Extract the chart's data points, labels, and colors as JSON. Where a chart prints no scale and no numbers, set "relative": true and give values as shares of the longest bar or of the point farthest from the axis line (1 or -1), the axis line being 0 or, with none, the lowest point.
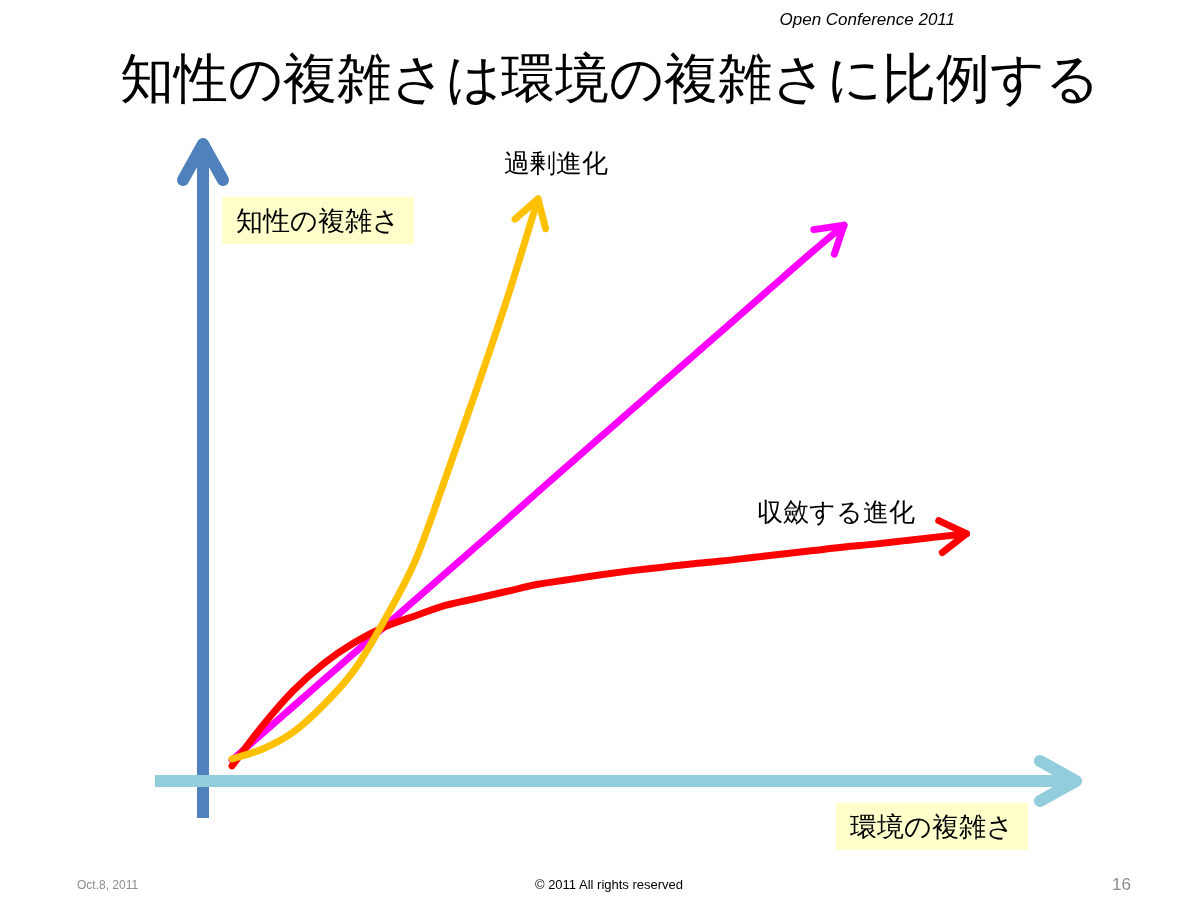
{
  "chart_data": {
    "type": "line",
    "title": "知性の複雑さは環境の複雑さに比例する",
    "xlabel": "環境の複雑さ",
    "ylabel": "知性の複雑さ",
    "relative": true,
    "line_style": "solid",
    "categories": [
      null,
      null,
      null,
      null,
      null,
      null,
      null,
      null,
      null,
      null,
      null,
      null,
      null,
      null,
      null,
      null,
      null,
      null,
      null,
      null,
      null,
      null,
      null,
      null,
      null
    ],
    "series": [
      {
        "color": "#ff00ff",
        "values": [
          0.036,
          0.082,
          0.128,
          0.174,
          0.22,
          0.266,
          0.312,
          0.358,
          0.404,
          0.45,
          0.497,
          0.543,
          0.589,
          0.635,
          0.681,
          0.727,
          0.773,
          0.819,
          0.865,
          0.911,
          0.955,
          null,
          null,
          null,
          null
        ]
      },
      {
        "name": "収斂する進化",
        "color": "#ff0000",
        "values": [
          0.026,
          0.095,
          0.155,
          0.202,
          0.238,
          0.265,
          0.284,
          0.302,
          0.314,
          0.326,
          0.338,
          0.346,
          0.354,
          0.361,
          0.367,
          0.373,
          0.378,
          0.384,
          0.39,
          0.396,
          0.402,
          0.407,
          0.413,
          0.419,
          0.425
        ]
      },
      {
        "name": "過剰進化",
        "color": "#ffc000",
        "values": [
          0.038,
          0.055,
          0.084,
          0.131,
          0.191,
          0.278,
          0.38,
          0.524,
          0.674,
          0.83,
          1.0,
          null,
          null,
          null,
          null,
          null,
          null,
          null,
          null,
          null,
          null,
          null,
          null,
          null,
          null
        ]
      }
    ],
    "annotations": [
      "Open Conference 2011",
      "Oct.8, 2011",
      "© 2011 All rights reserved",
      "16"
    ]
  }
}
